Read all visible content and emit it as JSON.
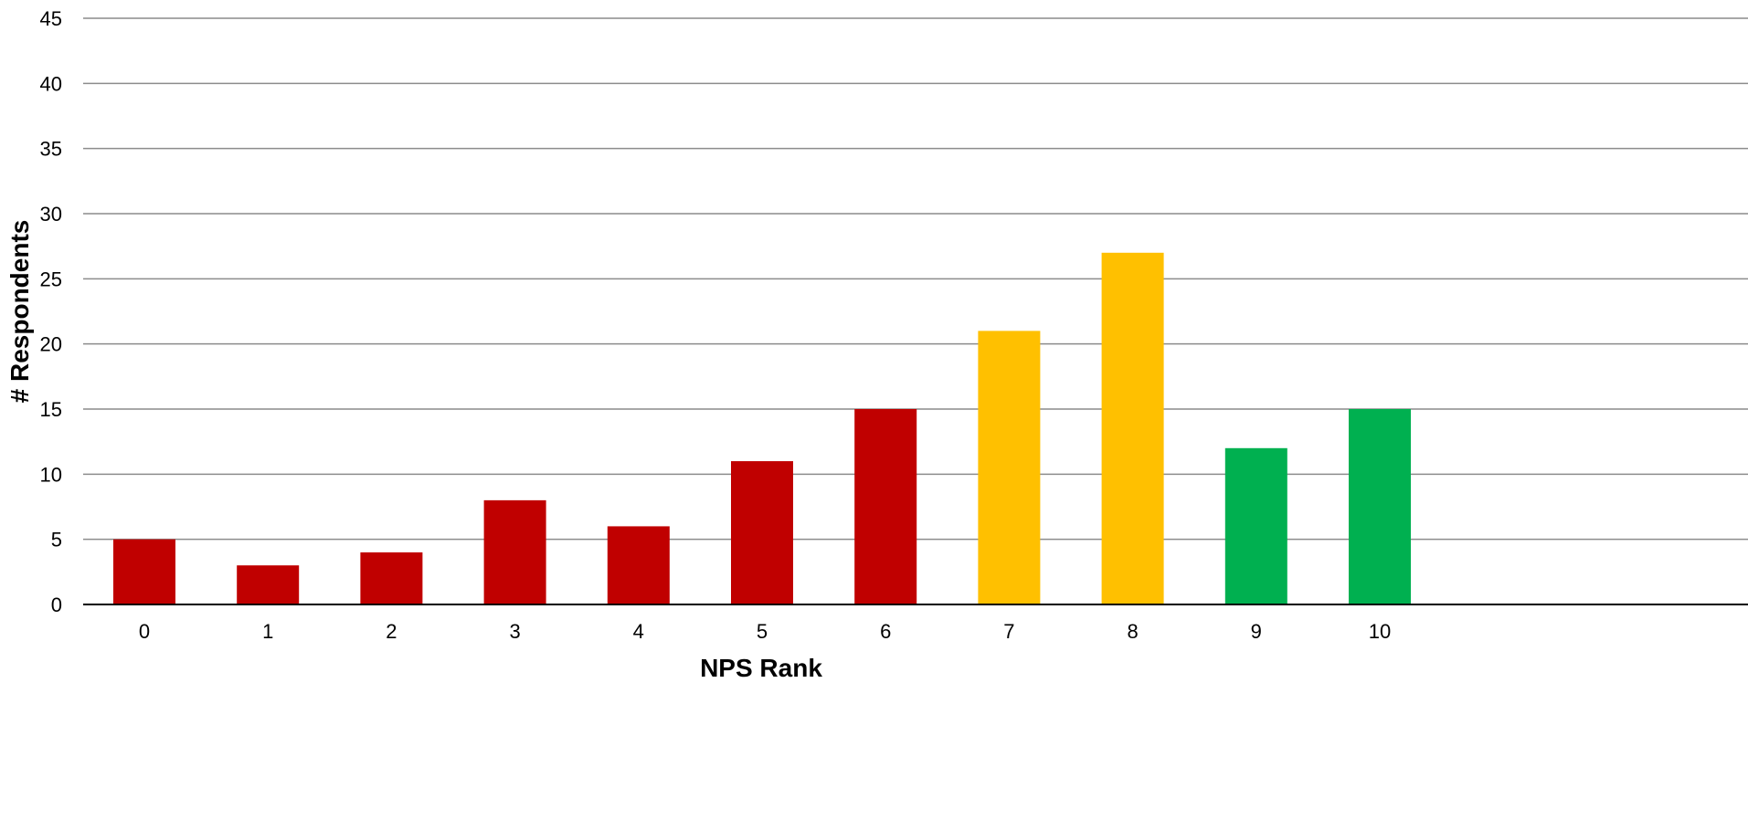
{
  "chart_data": {
    "type": "bar",
    "title": "",
    "xlabel": "NPS Rank",
    "ylabel": "# Respondents",
    "categories": [
      "0",
      "1",
      "2",
      "3",
      "4",
      "5",
      "6",
      "7",
      "8",
      "9",
      "10"
    ],
    "values": [
      5,
      3,
      4,
      8,
      6,
      11,
      15,
      21,
      27,
      12,
      15
    ],
    "bar_colors": [
      "#C00000",
      "#C00000",
      "#C00000",
      "#C00000",
      "#C00000",
      "#C00000",
      "#C00000",
      "#FFC000",
      "#FFC000",
      "#00B050",
      "#00B050"
    ],
    "ylim": [
      0,
      45
    ],
    "yticks": [
      0,
      5,
      10,
      15,
      20,
      25,
      30,
      35,
      40,
      45
    ],
    "grid": true,
    "legend": "none"
  }
}
